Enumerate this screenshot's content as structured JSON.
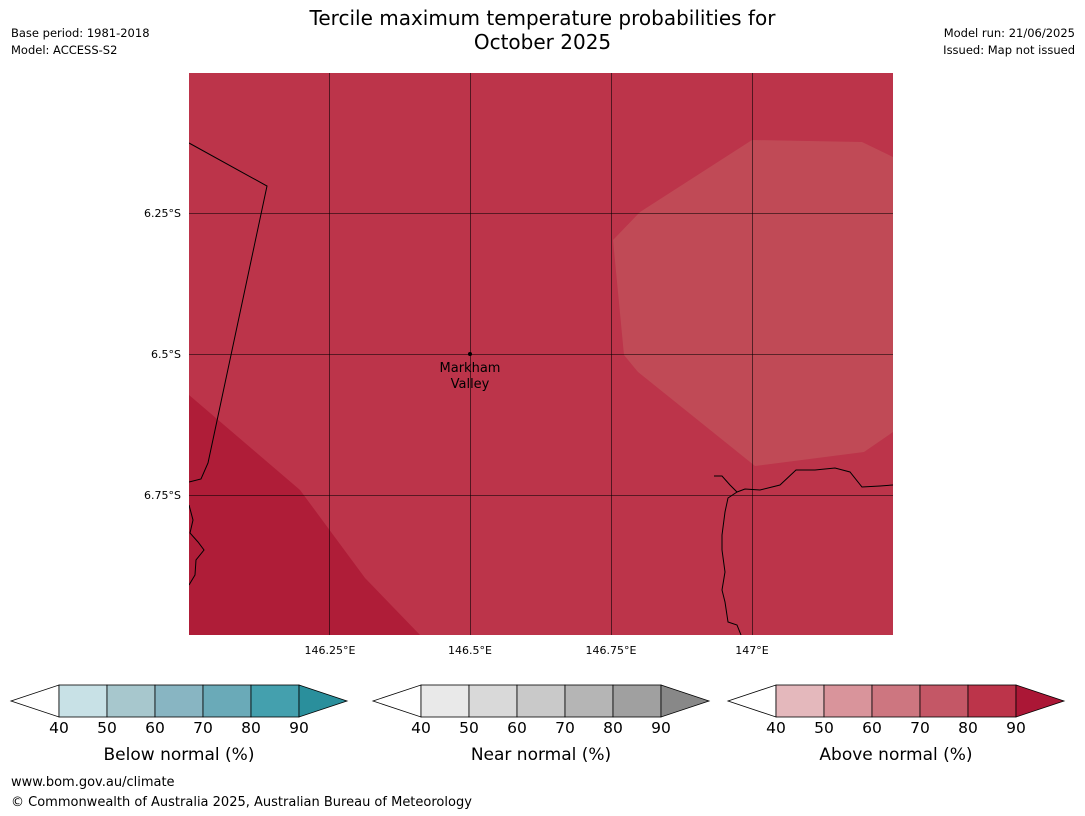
{
  "title_line1": "Tercile maximum temperature probabilities for",
  "title_line2": "October 2025",
  "meta_left": {
    "base_period": "Base period: 1981-2018",
    "model": "Model: ACCESS-S2"
  },
  "meta_right": {
    "model_run": "Model run: 21/06/2025",
    "issued": "Issued: Map not issued"
  },
  "map": {
    "lat_labels": [
      "6.25°S",
      "6.5°S",
      "6.75°S"
    ],
    "lon_labels": [
      "146.25°E",
      "146.5°E",
      "146.75°E",
      "147°E"
    ],
    "place_line1": "Markham",
    "place_line2": "Valley",
    "colors": {
      "main_fill": "#bc344a",
      "dark_fill": "#af1d38",
      "light_fill": "#c04a56"
    }
  },
  "legends": [
    {
      "title": "Below normal (%)",
      "ticks": [
        "40",
        "50",
        "60",
        "70",
        "80",
        "90"
      ],
      "colors": [
        "#ffffff",
        "#c8e1e6",
        "#a7c7cd",
        "#88b5c2",
        "#6aaab8",
        "#44a0ae",
        "#2a8f9c"
      ]
    },
    {
      "title": "Near normal (%)",
      "ticks": [
        "40",
        "50",
        "60",
        "70",
        "80",
        "90"
      ],
      "colors": [
        "#ffffff",
        "#e9e9e9",
        "#d9d9d9",
        "#c9c9c9",
        "#b5b5b5",
        "#a0a0a0",
        "#888888"
      ]
    },
    {
      "title": "Above normal (%)",
      "ticks": [
        "40",
        "50",
        "60",
        "70",
        "80",
        "90"
      ],
      "colors": [
        "#ffffff",
        "#e4b8bc",
        "#d9949b",
        "#cd7680",
        "#c45766",
        "#bc344a",
        "#ab1736"
      ]
    }
  ],
  "footer": {
    "url": "www.bom.gov.au/climate",
    "copyright": "© Commonwealth of Australia 2025, Australian Bureau of Meteorology"
  }
}
